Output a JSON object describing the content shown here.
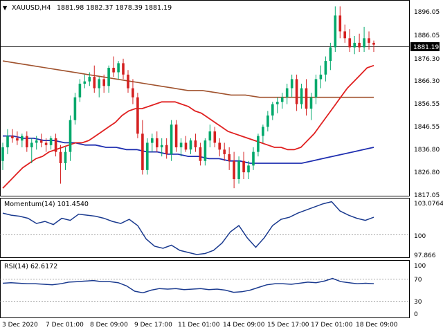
{
  "header": {
    "symbol": "XAUUSD,H4",
    "ohlc": "1881.98 1882.37 1878.39 1881.19"
  },
  "price_panel": {
    "ticks": [
      "1896.05",
      "1886.05",
      "1876.30",
      "1866.30",
      "1856.55",
      "1846.55",
      "1836.80",
      "1826.80",
      "1817.05"
    ],
    "current_price": "1881.19"
  },
  "momentum_panel": {
    "label": "Momentum(14) 101.4540",
    "ticks": [
      "103.0764",
      "100",
      "97.866"
    ]
  },
  "rsi_panel": {
    "label": "RSI(14) 62.6172",
    "ticks": [
      "100",
      "70",
      "30",
      "0"
    ]
  },
  "x_axis": {
    "labels": [
      "3 Dec 2020",
      "7 Dec 01:00",
      "8 Dec 09:00",
      "9 Dec 17:00",
      "11 Dec 01:00",
      "14 Dec 09:00",
      "15 Dec 17:00",
      "17 Dec 01:00",
      "18 Dec 09:00"
    ]
  },
  "colors": {
    "up_candle": "#00a86b",
    "down_candle": "#d42020",
    "sma_fast": "#e02020",
    "sma_mid": "#1f2fb0",
    "sma_slow": "#a0522d",
    "indicator_line": "#1a3a8f"
  },
  "chart_data": {
    "type": "candlestick",
    "title": "XAUUSD,H4",
    "ylim": [
      1815,
      1899
    ],
    "last": 1881.19,
    "candles": [
      [
        1830,
        1838,
        1826,
        1836
      ],
      [
        1836,
        1844,
        1833,
        1841
      ],
      [
        1841,
        1844,
        1838,
        1840
      ],
      [
        1840,
        1843,
        1837,
        1839
      ],
      [
        1839,
        1842,
        1836,
        1841
      ],
      [
        1841,
        1843,
        1834,
        1836
      ],
      [
        1836,
        1840,
        1829,
        1838
      ],
      [
        1838,
        1841,
        1835,
        1839
      ],
      [
        1839,
        1842,
        1836,
        1838
      ],
      [
        1838,
        1840,
        1834,
        1837
      ],
      [
        1837,
        1841,
        1835,
        1840
      ],
      [
        1840,
        1842,
        1832,
        1834
      ],
      [
        1834,
        1837,
        1820,
        1829
      ],
      [
        1829,
        1836,
        1826,
        1834
      ],
      [
        1834,
        1850,
        1830,
        1848
      ],
      [
        1848,
        1860,
        1846,
        1858
      ],
      [
        1858,
        1866,
        1856,
        1864
      ],
      [
        1864,
        1868,
        1862,
        1865
      ],
      [
        1865,
        1869,
        1863,
        1867
      ],
      [
        1867,
        1872,
        1860,
        1862
      ],
      [
        1862,
        1867,
        1858,
        1866
      ],
      [
        1866,
        1868,
        1860,
        1863
      ],
      [
        1863,
        1872,
        1860,
        1871
      ],
      [
        1871,
        1876,
        1867,
        1869
      ],
      [
        1869,
        1874,
        1866,
        1873
      ],
      [
        1873,
        1875,
        1866,
        1868
      ],
      [
        1868,
        1870,
        1860,
        1862
      ],
      [
        1862,
        1866,
        1855,
        1858
      ],
      [
        1858,
        1860,
        1840,
        1842
      ],
      [
        1842,
        1848,
        1824,
        1826
      ],
      [
        1826,
        1840,
        1824,
        1838
      ],
      [
        1838,
        1842,
        1834,
        1840
      ],
      [
        1840,
        1843,
        1834,
        1836
      ],
      [
        1836,
        1840,
        1832,
        1837
      ],
      [
        1837,
        1840,
        1831,
        1833
      ],
      [
        1833,
        1848,
        1830,
        1846
      ],
      [
        1846,
        1848,
        1834,
        1836
      ],
      [
        1836,
        1840,
        1832,
        1838
      ],
      [
        1838,
        1841,
        1834,
        1835
      ],
      [
        1835,
        1840,
        1833,
        1839
      ],
      [
        1839,
        1842,
        1834,
        1836
      ],
      [
        1836,
        1838,
        1828,
        1830
      ],
      [
        1830,
        1840,
        1828,
        1839
      ],
      [
        1839,
        1846,
        1836,
        1843
      ],
      [
        1843,
        1845,
        1836,
        1838
      ],
      [
        1838,
        1840,
        1832,
        1835
      ],
      [
        1835,
        1838,
        1830,
        1833
      ],
      [
        1833,
        1836,
        1826,
        1830
      ],
      [
        1830,
        1834,
        1818,
        1822
      ],
      [
        1822,
        1832,
        1820,
        1830
      ],
      [
        1830,
        1834,
        1822,
        1825
      ],
      [
        1825,
        1830,
        1822,
        1828
      ],
      [
        1828,
        1836,
        1826,
        1834
      ],
      [
        1834,
        1842,
        1832,
        1841
      ],
      [
        1841,
        1846,
        1838,
        1845
      ],
      [
        1845,
        1852,
        1843,
        1850
      ],
      [
        1850,
        1856,
        1848,
        1855
      ],
      [
        1855,
        1858,
        1851,
        1856
      ],
      [
        1856,
        1860,
        1853,
        1858
      ],
      [
        1858,
        1864,
        1855,
        1862
      ],
      [
        1862,
        1868,
        1858,
        1866
      ],
      [
        1866,
        1868,
        1852,
        1855
      ],
      [
        1855,
        1864,
        1853,
        1862
      ],
      [
        1862,
        1866,
        1850,
        1853
      ],
      [
        1853,
        1860,
        1848,
        1858
      ],
      [
        1858,
        1868,
        1855,
        1866
      ],
      [
        1866,
        1872,
        1862,
        1868
      ],
      [
        1868,
        1876,
        1865,
        1874
      ],
      [
        1874,
        1882,
        1870,
        1880
      ],
      [
        1880,
        1898,
        1878,
        1894
      ],
      [
        1894,
        1898,
        1884,
        1887
      ],
      [
        1887,
        1890,
        1882,
        1884
      ],
      [
        1884,
        1888,
        1878,
        1880
      ],
      [
        1880,
        1885,
        1877,
        1882
      ],
      [
        1882,
        1886,
        1878,
        1880
      ],
      [
        1880,
        1889,
        1878,
        1884
      ],
      [
        1884,
        1887,
        1879,
        1882
      ],
      [
        1882,
        1883,
        1878,
        1881.19
      ]
    ],
    "sma_fast": [
      1818,
      1821,
      1824,
      1827,
      1829,
      1831,
      1832,
      1834,
      1835,
      1836,
      1837,
      1838,
      1838,
      1839,
      1841,
      1843,
      1845,
      1847,
      1850,
      1852,
      1853,
      1853,
      1854,
      1855,
      1856,
      1856,
      1856,
      1855,
      1854,
      1852,
      1851,
      1849,
      1847,
      1845,
      1843,
      1842,
      1841,
      1840,
      1839,
      1838,
      1837,
      1836,
      1836,
      1835,
      1835,
      1836,
      1839,
      1842,
      1846,
      1850,
      1854,
      1858,
      1862,
      1865,
      1868,
      1871,
      1872
    ],
    "sma_mid": [
      1841,
      1841,
      1840,
      1840,
      1839,
      1839,
      1838,
      1838,
      1837,
      1837,
      1836,
      1836,
      1835,
      1835,
      1834,
      1834,
      1833,
      1833,
      1832,
      1832,
      1831,
      1831,
      1830,
      1830,
      1829,
      1829,
      1829,
      1829,
      1829,
      1829,
      1830,
      1831,
      1832,
      1833,
      1834,
      1835,
      1836
    ],
    "sma_slow": [
      1874,
      1873,
      1872,
      1871,
      1870,
      1869,
      1868,
      1867,
      1866,
      1865,
      1864,
      1863,
      1862,
      1861,
      1861,
      1860,
      1859,
      1859,
      1858,
      1858,
      1858,
      1858,
      1858,
      1858,
      1858,
      1858,
      1858
    ],
    "momentum": [
      102.0,
      101.8,
      101.7,
      101.5,
      101.0,
      101.2,
      100.9,
      101.5,
      101.3,
      101.9,
      101.8,
      101.7,
      101.5,
      101.2,
      101.0,
      101.4,
      100.8,
      99.5,
      98.8,
      98.6,
      98.9,
      98.4,
      98.2,
      98.0,
      98.1,
      98.4,
      99.1,
      100.2,
      100.8,
      99.6,
      98.7,
      99.6,
      100.8,
      101.4,
      101.6,
      102.0,
      102.3,
      102.6,
      102.9,
      103.1,
      102.2,
      101.8,
      101.5,
      101.3,
      101.6
    ],
    "rsi": [
      63,
      64,
      63,
      62,
      62,
      61,
      60,
      62,
      65,
      66,
      67,
      68,
      66,
      66,
      64,
      58,
      48,
      45,
      50,
      53,
      52,
      53,
      51,
      52,
      53,
      51,
      52,
      50,
      46,
      47,
      50,
      55,
      60,
      62,
      62,
      61,
      63,
      65,
      64,
      67,
      72,
      66,
      64,
      62,
      63,
      62
    ],
    "rsi_levels": [
      70,
      30
    ]
  }
}
